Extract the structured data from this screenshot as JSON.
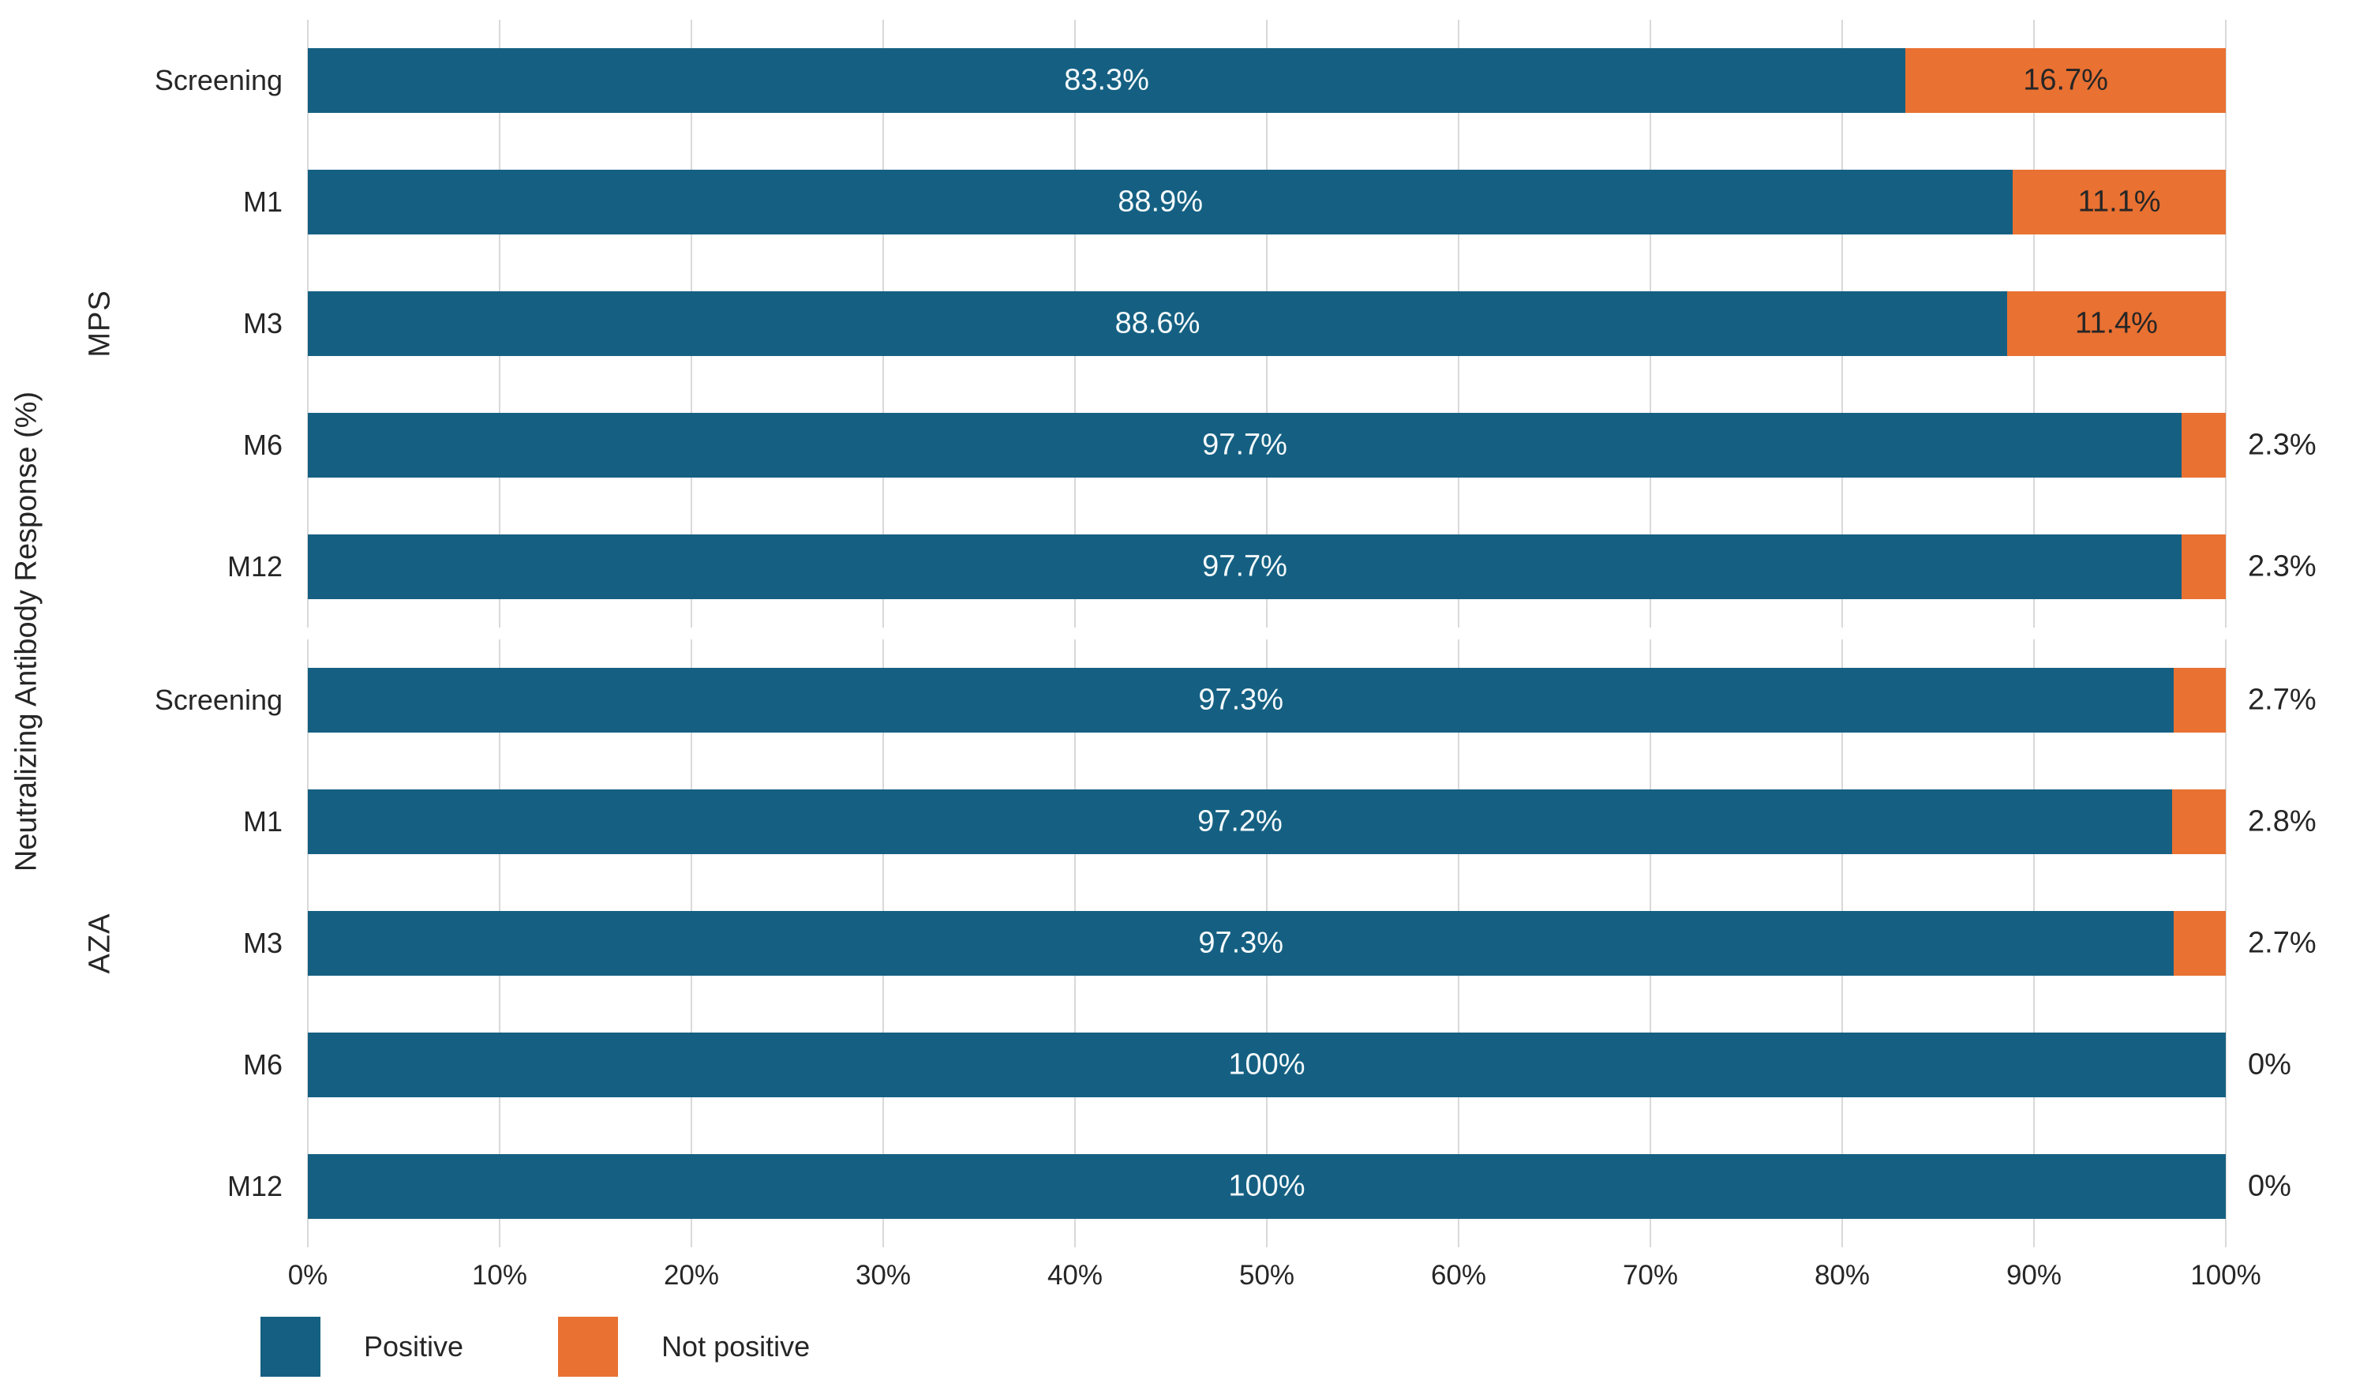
{
  "chart_data": {
    "type": "bar",
    "orientation": "horizontal",
    "stacked": true,
    "title": "",
    "xlabel": "",
    "ylabel": "Neutralizing Antibody Response (%)",
    "xlim": [
      0,
      100
    ],
    "x_ticks": [
      "0%",
      "10%",
      "20%",
      "30%",
      "40%",
      "50%",
      "60%",
      "70%",
      "80%",
      "90%",
      "100%"
    ],
    "grid": true,
    "legend_position": "bottom-left",
    "series": [
      {
        "name": "Positive",
        "color": "#156082"
      },
      {
        "name": "Not positive",
        "color": "#e97132"
      }
    ],
    "groups": [
      {
        "name": "MPS",
        "rows": [
          {
            "category": "Screening",
            "positive": 83.3,
            "not_positive": 16.7,
            "positive_label": "83.3%",
            "not_positive_label": "16.7%"
          },
          {
            "category": "M1",
            "positive": 88.9,
            "not_positive": 11.1,
            "positive_label": "88.9%",
            "not_positive_label": "11.1%"
          },
          {
            "category": "M3",
            "positive": 88.6,
            "not_positive": 11.4,
            "positive_label": "88.6%",
            "not_positive_label": "11.4%"
          },
          {
            "category": "M6",
            "positive": 97.7,
            "not_positive": 2.3,
            "positive_label": "97.7%",
            "not_positive_label": "2.3%"
          },
          {
            "category": "M12",
            "positive": 97.7,
            "not_positive": 2.3,
            "positive_label": "97.7%",
            "not_positive_label": "2.3%"
          }
        ]
      },
      {
        "name": "AZA",
        "rows": [
          {
            "category": "Screening",
            "positive": 97.3,
            "not_positive": 2.7,
            "positive_label": "97.3%",
            "not_positive_label": "2.7%"
          },
          {
            "category": "M1",
            "positive": 97.2,
            "not_positive": 2.8,
            "positive_label": "97.2%",
            "not_positive_label": "2.8%"
          },
          {
            "category": "M3",
            "positive": 97.3,
            "not_positive": 2.7,
            "positive_label": "97.3%",
            "not_positive_label": "2.7%"
          },
          {
            "category": "M6",
            "positive": 100,
            "not_positive": 0,
            "positive_label": "100%",
            "not_positive_label": "0%"
          },
          {
            "category": "M12",
            "positive": 100,
            "not_positive": 0,
            "positive_label": "100%",
            "not_positive_label": "0%"
          }
        ]
      }
    ]
  },
  "colors": {
    "positive": "#156082",
    "not_positive": "#e97132",
    "gridline": "#d9d9d9",
    "axis_text": "#262626",
    "bar_label_on_blue": "#f5fafc",
    "bar_label_on_orange": "#262626",
    "background": "#ffffff"
  },
  "legend": {
    "positive_label": "Positive",
    "not_positive_label": "Not positive"
  }
}
